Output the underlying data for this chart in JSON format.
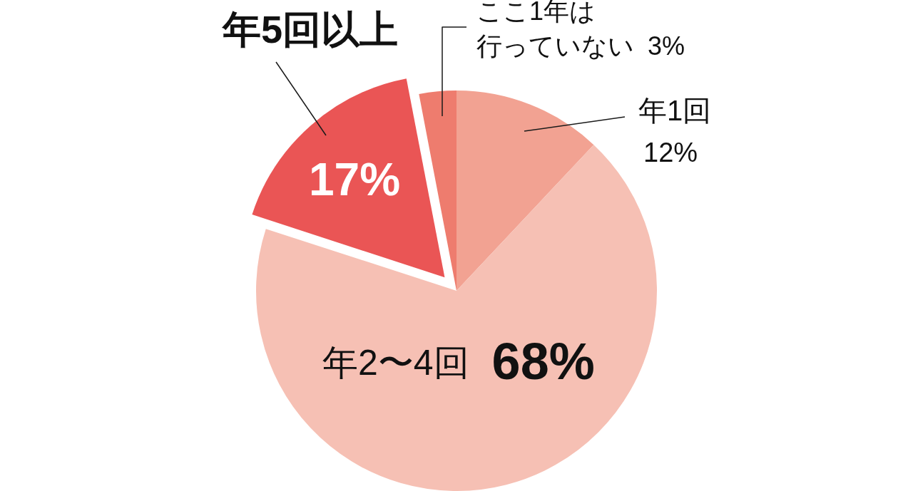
{
  "chart_data": {
    "type": "pie",
    "categories": [
      "年1回",
      "年2〜4回",
      "年5回以上",
      "ここ1年は行っていない"
    ],
    "values": [
      12,
      68,
      17,
      3
    ],
    "colors": [
      "#f2a292",
      "#f6c0b4",
      "#ea5555",
      "#ee7c6e"
    ],
    "value_labels": [
      "12%",
      "68%",
      "17%",
      "3%"
    ]
  }
}
